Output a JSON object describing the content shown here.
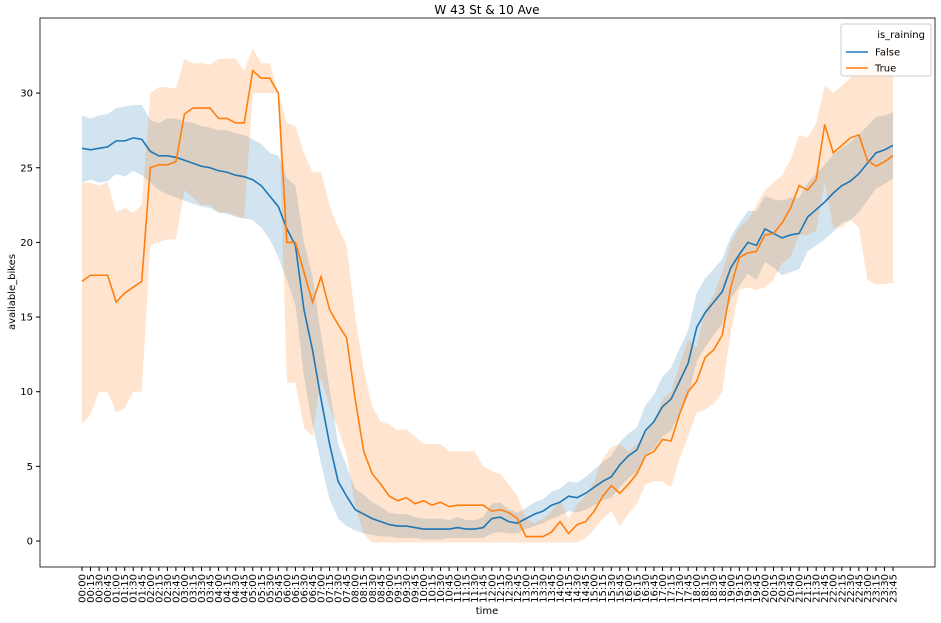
{
  "chart_data": {
    "type": "line",
    "title": "W 43 St & 10 Ave",
    "xlabel": "time",
    "ylabel": "available_bikes",
    "legend_title": "is_raining",
    "legend_loc": "upper right",
    "categories": [
      "00:00",
      "00:15",
      "00:30",
      "00:45",
      "01:00",
      "01:15",
      "01:30",
      "01:45",
      "02:00",
      "02:15",
      "02:30",
      "02:45",
      "03:00",
      "03:15",
      "03:30",
      "03:45",
      "04:00",
      "04:15",
      "04:30",
      "04:45",
      "05:00",
      "05:15",
      "05:30",
      "05:45",
      "06:00",
      "06:15",
      "06:30",
      "06:45",
      "07:00",
      "07:15",
      "07:30",
      "07:45",
      "08:00",
      "08:15",
      "08:30",
      "08:45",
      "09:00",
      "09:15",
      "09:30",
      "09:45",
      "10:00",
      "10:15",
      "10:30",
      "10:45",
      "11:00",
      "11:15",
      "11:30",
      "11:45",
      "12:00",
      "12:15",
      "12:30",
      "12:45",
      "13:00",
      "13:15",
      "13:30",
      "13:45",
      "14:00",
      "14:15",
      "14:30",
      "14:45",
      "15:00",
      "15:15",
      "15:30",
      "15:45",
      "16:00",
      "16:15",
      "16:30",
      "16:45",
      "17:00",
      "17:15",
      "17:30",
      "17:45",
      "18:00",
      "18:15",
      "18:30",
      "18:45",
      "19:00",
      "19:15",
      "19:30",
      "19:45",
      "20:00",
      "20:15",
      "20:30",
      "20:45",
      "21:00",
      "21:15",
      "21:30",
      "21:45",
      "22:00",
      "22:15",
      "22:30",
      "22:45",
      "23:00",
      "23:15",
      "23:30",
      "23:45"
    ],
    "ylim": [
      -1.74,
      35.03
    ],
    "yticks": [
      0,
      5,
      10,
      15,
      20,
      25,
      30
    ],
    "series": [
      {
        "name": "False",
        "color": "#1f77b4",
        "values": [
          26.3,
          26.2,
          26.3,
          26.4,
          26.8,
          26.8,
          27.0,
          26.9,
          26.1,
          25.8,
          25.8,
          25.7,
          25.5,
          25.3,
          25.1,
          25.0,
          24.8,
          24.7,
          24.5,
          24.4,
          24.2,
          23.8,
          23.1,
          22.4,
          20.9,
          19.8,
          15.5,
          12.8,
          9.5,
          6.5,
          4.0,
          3.0,
          2.1,
          1.8,
          1.5,
          1.3,
          1.1,
          1.0,
          1.0,
          0.9,
          0.8,
          0.8,
          0.8,
          0.8,
          0.9,
          0.8,
          0.8,
          0.9,
          1.5,
          1.6,
          1.3,
          1.2,
          1.5,
          1.8,
          2.0,
          2.4,
          2.6,
          3.0,
          2.9,
          3.2,
          3.6,
          4.0,
          4.3,
          5.1,
          5.7,
          6.1,
          7.4,
          8.0,
          9.0,
          9.5,
          10.7,
          11.9,
          14.3,
          15.3,
          16.0,
          16.7,
          18.3,
          19.2,
          20.0,
          19.8,
          20.9,
          20.6,
          20.3,
          20.5,
          20.6,
          21.7,
          22.2,
          22.7,
          23.3,
          23.8,
          24.1,
          24.6,
          25.3,
          26.0,
          26.2,
          26.5
        ],
        "lower": [
          24.0,
          24.2,
          24.0,
          24.1,
          24.6,
          24.4,
          24.8,
          24.5,
          24.0,
          23.5,
          23.2,
          23.0,
          22.8,
          22.6,
          22.4,
          22.3,
          22.0,
          21.9,
          21.7,
          21.6,
          21.5,
          21.0,
          20.2,
          19.0,
          17.5,
          15.8,
          11.0,
          7.8,
          5.2,
          2.8,
          1.5,
          1.0,
          0.7,
          0.5,
          0.4,
          0.3,
          0.3,
          0.2,
          0.2,
          0.2,
          0.1,
          0.1,
          0.1,
          0.2,
          0.2,
          0.2,
          0.2,
          0.2,
          0.5,
          0.6,
          0.5,
          0.5,
          0.8,
          1.0,
          1.2,
          1.5,
          1.7,
          2.0,
          1.9,
          2.1,
          2.4,
          2.7,
          2.9,
          3.6,
          4.2,
          4.6,
          5.7,
          6.2,
          7.0,
          7.4,
          8.5,
          9.7,
          12.0,
          13.0,
          13.8,
          14.5,
          16.2,
          17.1,
          17.9,
          17.5,
          18.7,
          18.3,
          17.8,
          18.0,
          18.2,
          19.4,
          19.8,
          20.2,
          20.7,
          21.3,
          21.5,
          22.0,
          22.8,
          23.6,
          23.9,
          24.3
        ],
        "upper": [
          28.5,
          28.3,
          28.5,
          28.6,
          29.0,
          29.1,
          29.2,
          29.2,
          28.2,
          28.0,
          28.3,
          28.3,
          28.1,
          28.0,
          27.8,
          27.7,
          27.5,
          27.5,
          27.3,
          27.2,
          26.9,
          26.6,
          26.0,
          25.8,
          24.3,
          23.8,
          20.0,
          17.8,
          13.8,
          10.2,
          6.5,
          5.0,
          3.5,
          3.1,
          2.6,
          2.3,
          1.9,
          1.8,
          1.8,
          1.6,
          1.5,
          1.5,
          1.5,
          1.4,
          1.6,
          1.4,
          1.4,
          1.6,
          2.5,
          2.6,
          2.1,
          1.9,
          2.2,
          2.6,
          2.8,
          3.3,
          3.5,
          4.0,
          3.9,
          4.3,
          4.8,
          5.3,
          5.7,
          6.6,
          7.2,
          7.6,
          9.1,
          9.8,
          11.0,
          11.6,
          12.9,
          14.1,
          16.6,
          17.6,
          18.2,
          18.9,
          20.4,
          21.3,
          22.1,
          22.1,
          23.1,
          22.9,
          22.8,
          23.0,
          23.0,
          24.0,
          24.6,
          25.2,
          25.9,
          26.3,
          26.7,
          27.2,
          27.8,
          28.4,
          28.5,
          28.7
        ]
      },
      {
        "name": "True",
        "color": "#ff7f0e",
        "values": [
          17.4,
          17.8,
          17.8,
          17.8,
          16.0,
          16.6,
          17.0,
          17.4,
          25.0,
          25.2,
          25.2,
          25.4,
          28.6,
          29.0,
          29.0,
          29.0,
          28.3,
          28.3,
          28.0,
          28.0,
          31.5,
          31.0,
          31.0,
          30.0,
          20.0,
          20.0,
          18.0,
          16.0,
          17.7,
          15.5,
          14.5,
          13.6,
          9.5,
          6.0,
          4.5,
          3.8,
          3.0,
          2.7,
          2.9,
          2.5,
          2.7,
          2.4,
          2.6,
          2.3,
          2.4,
          2.4,
          2.4,
          2.4,
          2.0,
          2.1,
          1.9,
          1.5,
          0.3,
          0.3,
          0.3,
          0.6,
          1.3,
          0.5,
          1.1,
          1.3,
          2.0,
          3.0,
          3.7,
          3.2,
          3.8,
          4.5,
          5.7,
          6.0,
          6.8,
          6.7,
          8.5,
          10.0,
          10.7,
          12.3,
          12.8,
          13.8,
          17.0,
          19.0,
          19.3,
          19.4,
          20.5,
          20.6,
          21.3,
          22.3,
          23.8,
          23.5,
          24.2,
          27.9,
          26.0,
          26.5,
          27.0,
          27.2,
          25.5,
          25.1,
          25.4,
          25.8
        ],
        "lower": [
          7.8,
          8.5,
          10.0,
          10.0,
          8.6,
          8.9,
          10.0,
          10.0,
          19.8,
          20.0,
          20.2,
          20.2,
          23.5,
          23.0,
          22.5,
          22.5,
          22.0,
          22.0,
          21.8,
          21.6,
          30.0,
          30.0,
          30.0,
          30.0,
          10.6,
          10.6,
          7.6,
          7.0,
          11.0,
          9.0,
          7.5,
          5.8,
          2.3,
          0.5,
          -0.1,
          -0.1,
          -0.1,
          -0.1,
          -0.1,
          -0.1,
          -0.1,
          -0.1,
          -0.1,
          -0.1,
          -0.1,
          -0.1,
          -0.1,
          -0.1,
          -0.1,
          -0.1,
          -0.1,
          -0.1,
          -0.1,
          -0.1,
          -0.1,
          -0.1,
          -0.1,
          -0.1,
          -0.1,
          0.2,
          0.8,
          1.5,
          2.0,
          1.0,
          1.8,
          2.5,
          3.8,
          4.0,
          4.0,
          3.6,
          5.5,
          7.0,
          8.6,
          8.8,
          9.2,
          10.0,
          14.0,
          16.8,
          17.0,
          16.8,
          17.0,
          17.5,
          18.6,
          19.0,
          20.5,
          20.5,
          20.8,
          24.0,
          21.0,
          21.0,
          21.5,
          21.0,
          17.5,
          17.2,
          17.2,
          17.3
        ],
        "upper": [
          24.0,
          24.0,
          23.8,
          24.0,
          22.0,
          22.3,
          22.0,
          22.5,
          30.0,
          30.4,
          30.4,
          30.3,
          32.3,
          32.0,
          32.0,
          31.9,
          32.3,
          32.3,
          32.3,
          31.5,
          33.0,
          32.0,
          32.0,
          30.0,
          28.0,
          27.8,
          26.0,
          24.7,
          24.7,
          22.5,
          21.0,
          19.8,
          15.0,
          11.5,
          9.0,
          8.0,
          7.8,
          7.4,
          7.5,
          7.0,
          6.5,
          6.5,
          6.5,
          6.0,
          6.0,
          6.0,
          6.0,
          5.0,
          4.7,
          4.5,
          3.8,
          3.0,
          1.5,
          1.2,
          1.5,
          2.0,
          2.7,
          1.5,
          2.5,
          3.0,
          4.0,
          5.5,
          6.3,
          6.5,
          6.0,
          6.5,
          7.2,
          8.0,
          9.5,
          10.0,
          11.8,
          13.5,
          13.0,
          15.5,
          16.5,
          18.0,
          20.0,
          21.0,
          21.5,
          22.5,
          23.5,
          24.0,
          24.5,
          25.5,
          27.2,
          27.0,
          28.0,
          30.5,
          30.0,
          30.5,
          31.0,
          32.0,
          32.0,
          32.5,
          33.0,
          33.0
        ]
      }
    ]
  }
}
